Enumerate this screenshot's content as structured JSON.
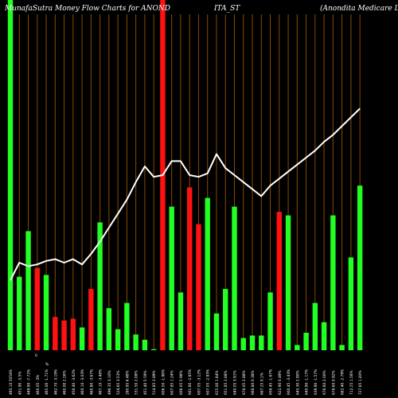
{
  "title_parts": [
    "MunafaSutra  Money Flow  Charts for ANOND",
    "ITA_ST",
    "(Anondita  Medicare  Limit"
  ],
  "colors": {
    "background": "#000000",
    "up": "#22ff22",
    "down": "#ff1111",
    "line": "#ffffff",
    "grid": "#8b4a00"
  },
  "chart_data": {
    "type": "bar",
    "series_line_color": "#ffffff",
    "ylim": [
      0,
      100
    ],
    "bars": [
      {
        "value": 100,
        "color": "up"
      },
      {
        "value": 21,
        "color": "up"
      },
      {
        "value": 34,
        "color": "up"
      },
      {
        "value": 23.5,
        "color": "down"
      },
      {
        "value": 21.5,
        "color": "up"
      },
      {
        "value": 9.5,
        "color": "down"
      },
      {
        "value": 8.5,
        "color": "down"
      },
      {
        "value": 9,
        "color": "down"
      },
      {
        "value": 6.5,
        "color": "up"
      },
      {
        "value": 17.5,
        "color": "down"
      },
      {
        "value": 36.5,
        "color": "up"
      },
      {
        "value": 12,
        "color": "up"
      },
      {
        "value": 6,
        "color": "up"
      },
      {
        "value": 13.5,
        "color": "up"
      },
      {
        "value": 4.5,
        "color": "up"
      },
      {
        "value": 3,
        "color": "up"
      },
      {
        "value": 0.3,
        "color": "up"
      },
      {
        "value": 100,
        "color": "down"
      },
      {
        "value": 41,
        "color": "up"
      },
      {
        "value": 16.5,
        "color": "up"
      },
      {
        "value": 46.5,
        "color": "down"
      },
      {
        "value": 36,
        "color": "down"
      },
      {
        "value": 43.5,
        "color": "up"
      },
      {
        "value": 10.5,
        "color": "up"
      },
      {
        "value": 17.5,
        "color": "up"
      },
      {
        "value": 41,
        "color": "up"
      },
      {
        "value": 3.5,
        "color": "up"
      },
      {
        "value": 4.2,
        "color": "up"
      },
      {
        "value": 4.2,
        "color": "up"
      },
      {
        "value": 16.5,
        "color": "up"
      },
      {
        "value": 39.5,
        "color": "down"
      },
      {
        "value": 38.5,
        "color": "up"
      },
      {
        "value": 1.5,
        "color": "up"
      },
      {
        "value": 5,
        "color": "up"
      },
      {
        "value": 13.5,
        "color": "up"
      },
      {
        "value": 8,
        "color": "up"
      },
      {
        "value": 38.5,
        "color": "up"
      },
      {
        "value": 1.5,
        "color": "up"
      },
      {
        "value": 26.5,
        "color": "up"
      },
      {
        "value": 47,
        "color": "up"
      }
    ],
    "line_values": [
      20,
      25,
      24,
      24.5,
      25.5,
      26,
      25,
      26,
      24.5,
      27.5,
      31,
      35,
      39,
      43,
      48,
      52.5,
      49.5,
      50,
      54,
      54,
      50,
      49.5,
      50.5,
      56,
      52,
      50,
      48,
      46,
      44,
      47,
      49,
      51,
      53,
      55,
      57,
      59.5,
      61.5,
      64,
      66.5,
      69
    ],
    "x_tick_labels": [
      "493.10 5054%",
      "451.90 -3.5%",
      "449.90 -7.72%",
      "460.05 -3%",
      "465.00 -1.71%",
      "462.70 -3.19%",
      "460.00 2.26%",
      "456.40 -3.62%",
      "460.10 -3.03%",
      "460.80 -3.67%",
      "467.10 -3.46%",
      "496.35 3.10%",
      "524.65 3.53%",
      "280.95 6.48%",
      "531.50 2.08%",
      "451.40 5.59%",
      "514.85 2.89%",
      "606.50 -1.96%",
      "607.85 1.24%",
      "606.05 5.98%",
      "601.60 -2.85%",
      "607.05 -3.12%",
      "607.05 -2.93%",
      "615.00 1.84%",
      "651.85 2.88%",
      "640.05 3.91%",
      "678.05 2.88%",
      "668.80 0.38%",
      "667.25 0.1%",
      "656.45 -1.67%",
      "622.90 0.49%",
      "600.45 -3.43%",
      "645.30 2.90%",
      "640.90 -1.17%",
      "639.90 -1.57%",
      "676.80 2.00%",
      "678.60 0.92%",
      "682.40 -2.79%",
      "712.25 1.58%",
      "727.65 1.40%"
    ],
    "x_tick_marks": [
      "0",
      "%"
    ]
  }
}
